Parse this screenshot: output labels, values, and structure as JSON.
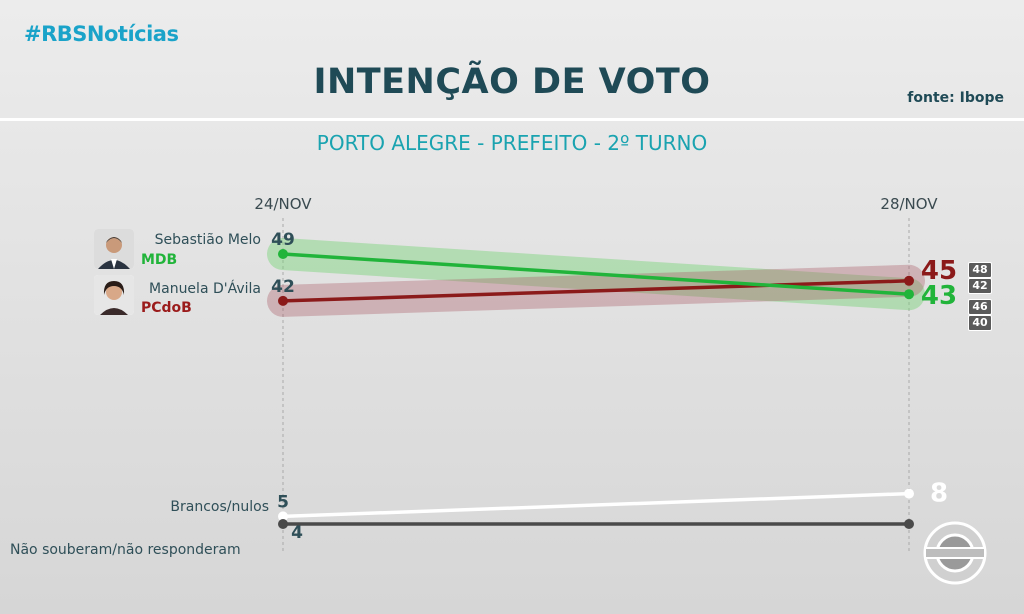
{
  "header": {
    "brand": "#RBSNotícias",
    "title": "INTENÇÃO DE VOTO",
    "source": "fonte: Ibope",
    "subtitle": "PORTO ALEGRE - PREFEITO - 2º TURNO"
  },
  "candidates": [
    {
      "name": "Sebastião Melo",
      "party": "MDB",
      "party_color": "#21b43a"
    },
    {
      "name": "Manuela D'Ávila",
      "party": "PCdoB",
      "party_color": "#8b1a1a"
    }
  ],
  "ci_boxes": [
    "48",
    "42",
    "46",
    "40"
  ],
  "chart_data": {
    "type": "line",
    "x": [
      "24/NOV",
      "28/NOV"
    ],
    "series": [
      {
        "name": "Sebastião Melo",
        "values": [
          49,
          43
        ],
        "color": "#21b43a"
      },
      {
        "name": "Manuela D'Ávila",
        "values": [
          42,
          45
        ],
        "color": "#8b1a1a"
      },
      {
        "name": "Brancos/nulos",
        "values": [
          5,
          8
        ],
        "color": "#ffffff"
      },
      {
        "name": "Não souberam/não responderam",
        "values": [
          4,
          4
        ],
        "color": "#4a4a4a"
      }
    ],
    "title": "INTENÇÃO DE VOTO",
    "subtitle": "PORTO ALEGRE - PREFEITO - 2º TURNO",
    "ci_ranges": {
      "Sebastião Melo": [
        40,
        46
      ],
      "Manuela D'Ávila": [
        42,
        48
      ]
    }
  }
}
